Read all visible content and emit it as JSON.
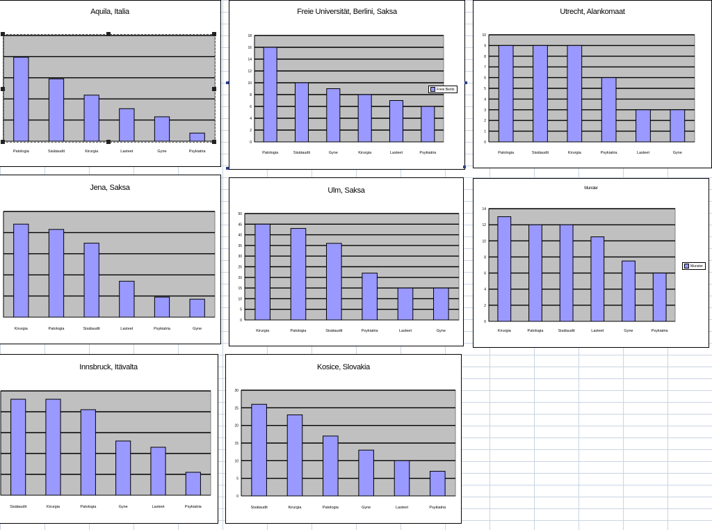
{
  "colors": {
    "bar": "#9999ff",
    "plot_bg": "#c0c0c0",
    "grid": "#000000"
  },
  "chart_data": [
    {
      "id": "aquila",
      "type": "bar",
      "title": "Aquila, Italia",
      "categories": [
        "Patologia",
        "Sisätaudit",
        "Kirurgia",
        "Lasteet",
        "Gyne",
        "Psykiatria"
      ],
      "values": [
        6.2,
        4.6,
        3.4,
        2.4,
        1.8,
        0.6
      ],
      "ylim": [
        0,
        7.8
      ],
      "show_yticks": false,
      "legend": null
    },
    {
      "id": "berlin",
      "type": "bar",
      "title": "Freie Universität, Berlini, Saksa",
      "categories": [
        "Patologia",
        "Sisätaudit",
        "Gyne",
        "Kirurgia",
        "Lasteet",
        "Psykiatria"
      ],
      "values": [
        16,
        10,
        9,
        8,
        7,
        6
      ],
      "ylim": [
        0,
        18
      ],
      "yticks": [
        "0",
        "2",
        "4",
        "6",
        "8",
        "10",
        "12",
        "14",
        "16",
        "18"
      ],
      "show_yticks": true,
      "legend": "Freie Berlin"
    },
    {
      "id": "utrecht",
      "type": "bar",
      "title": "Utrecht, Alankomaat",
      "categories": [
        "Patologia",
        "Sisätaudit",
        "Kirurgia",
        "Psykiatria",
        "Lasteet",
        "Gyne"
      ],
      "values": [
        9,
        9,
        9,
        6,
        3,
        3
      ],
      "ylim": [
        0,
        10
      ],
      "yticks": [
        "0",
        "1",
        "2",
        "3",
        "4",
        "5",
        "6",
        "7",
        "8",
        "9",
        "10"
      ],
      "show_yticks": true,
      "legend": null
    },
    {
      "id": "jena",
      "type": "bar",
      "title": "Jena, Saksa",
      "categories": [
        "Kirurgia",
        "Patologia",
        "Sisätaudit",
        "Lasteet",
        "Psykiatria",
        "Gyne"
      ],
      "values": [
        44,
        41.5,
        35,
        17,
        9.5,
        8.5
      ],
      "ylim": [
        0,
        50
      ],
      "show_yticks": false,
      "legend": null
    },
    {
      "id": "ulm",
      "type": "bar",
      "title": "Ulm, Saksa",
      "categories": [
        "Kirurgia",
        "Patologia",
        "Sisätaudit",
        "Psykiatria",
        "Lasteet",
        "Gyne"
      ],
      "values": [
        45,
        43,
        36,
        22,
        15,
        15
      ],
      "ylim": [
        0,
        50
      ],
      "yticks": [
        "0",
        "5",
        "10",
        "15",
        "20",
        "25",
        "30",
        "35",
        "40",
        "45",
        "50"
      ],
      "show_yticks": true,
      "legend": null
    },
    {
      "id": "munster",
      "type": "bar",
      "title": "Munster",
      "categories": [
        "Kirurgia",
        "Patologia",
        "Sisätaudit",
        "Lasteet",
        "Gyne",
        "Psykiatria"
      ],
      "values": [
        13,
        12,
        12,
        10.5,
        7.5,
        6
      ],
      "ylim": [
        0,
        14
      ],
      "yticks": [
        "0",
        "2",
        "4",
        "6",
        "8",
        "10",
        "12",
        "14"
      ],
      "show_yticks": true,
      "legend": "Munster"
    },
    {
      "id": "innsbruck",
      "type": "bar",
      "title": "Innsbruck, Itävalta",
      "categories": [
        "Sisätaudit",
        "Kirurgia",
        "Patologia",
        "Gyne",
        "Lasteet",
        "Psykiatria"
      ],
      "values": [
        23,
        23,
        20.5,
        13,
        11.5,
        5.5
      ],
      "ylim": [
        0,
        25
      ],
      "show_yticks": false,
      "legend": null
    },
    {
      "id": "kosice",
      "type": "bar",
      "title": "Kosice, Slovakia",
      "categories": [
        "Sisätaudit",
        "Kirurgia",
        "Patologia",
        "Gyne",
        "Lasteet",
        "Psykiatria"
      ],
      "values": [
        26,
        23,
        17,
        13,
        10,
        7
      ],
      "ylim": [
        0,
        30
      ],
      "yticks": [
        "0",
        "5",
        "10",
        "15",
        "20",
        "25",
        "30"
      ],
      "show_yticks": true,
      "legend": null
    }
  ]
}
